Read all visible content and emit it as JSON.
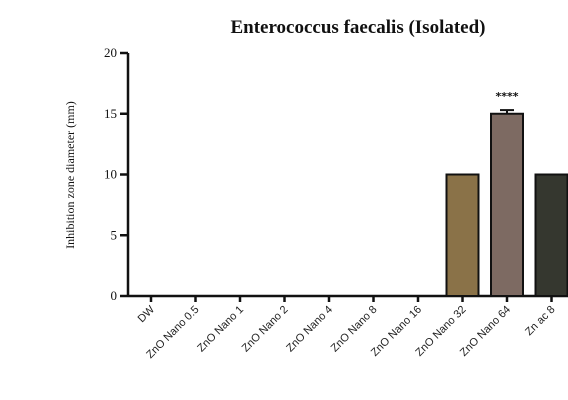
{
  "chart_data": {
    "type": "bar",
    "title": "Enterococcus faecalis (Isolated)",
    "ylabel": "Inhibition zone diameter (mm)",
    "xlabel": "",
    "ylim": [
      0,
      20
    ],
    "yticks": [
      0,
      5,
      10,
      15,
      20
    ],
    "categories": [
      "DW",
      "ZnO Nano 0.5",
      "ZnO Nano 1",
      "ZnO Nano 2",
      "ZnO Nano 4",
      "ZnO Nano 8",
      "ZnO Nano 16",
      "ZnO Nano 32",
      "ZnO Nano 64",
      "Zn ac 8"
    ],
    "values": [
      0,
      0,
      0,
      0,
      0,
      0,
      0,
      10,
      15,
      10
    ],
    "errors": [
      0,
      0,
      0,
      0,
      0,
      0,
      0,
      0,
      0.3,
      0
    ],
    "significance": {
      "category": "ZnO Nano 64",
      "label": "****"
    },
    "colors": [
      "#8a7248",
      "#8a8a8a",
      "#8a8a8a",
      "#8a8a8a",
      "#8a8a8a",
      "#8a8a8a",
      "#8a8a8a",
      "#8a7248",
      "#7d6a62",
      "#35372f"
    ],
    "grid": false,
    "legend": "none"
  }
}
